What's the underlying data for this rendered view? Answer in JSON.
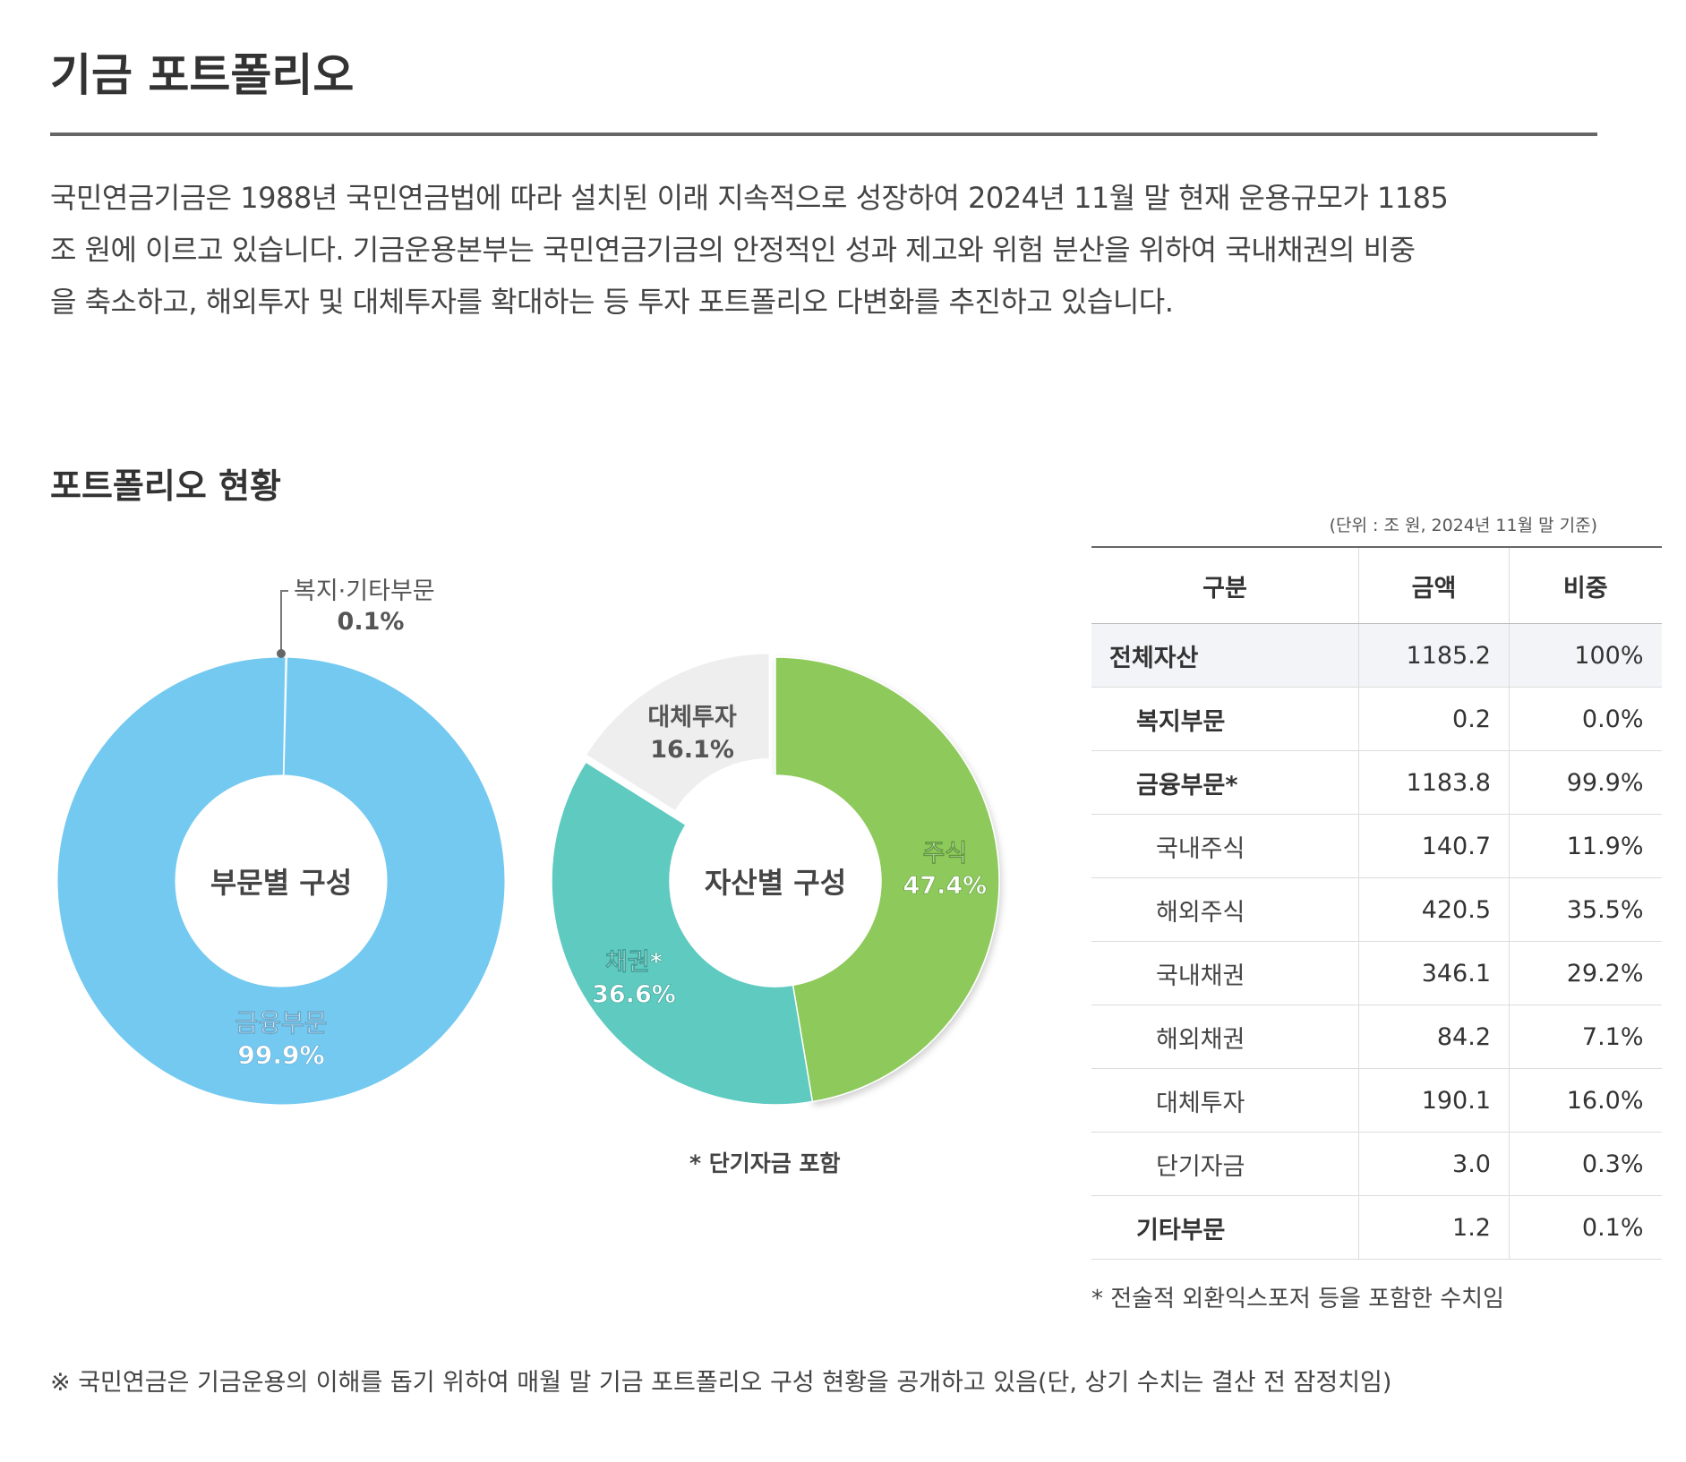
{
  "header": {
    "title": "기금 포트폴리오"
  },
  "intro": {
    "line1": "국민연금기금은 1988년 국민연금법에 따라 설치된 이래 지속적으로 성장하여 2024년 11월 말 현재 운용규모가 1185",
    "line2": "조 원에 이르고 있습니다. 기금운용본부는 국민연금기금의 안정적인 성과 제고와 위험 분산을 위하여 국내채권의 비중",
    "line3": "을 축소하고, 해외투자 및 대체투자를 확대하는 등 투자 포트폴리오 다변화를 추진하고 있습니다."
  },
  "section": {
    "title": "포트폴리오 현황",
    "unit_note": "(단위 : 조 원, 2024년 11월 말 기준)"
  },
  "chart_data": [
    {
      "type": "pie",
      "center_label": "부문별 구성",
      "slices": [
        {
          "label": "복지·기타부문",
          "value_label": "0.1%",
          "value": 0.1,
          "color": "#e6e6e6"
        },
        {
          "label": "금융부문",
          "value_label": "99.9%",
          "value": 99.9,
          "color": "#74c9f0"
        }
      ]
    },
    {
      "type": "pie",
      "center_label": "자산별 구성",
      "slices": [
        {
          "label": "주식",
          "value_label": "47.4%",
          "value": 47.4,
          "color": "#8ec95c"
        },
        {
          "label": "채권*",
          "value_label": "36.6%",
          "value": 36.6,
          "color": "#5ecac0"
        },
        {
          "label": "대체투자",
          "value_label": "16.1%",
          "value": 16.1,
          "color": "#eeeeee"
        }
      ],
      "footnote": "* 단기자금 포함"
    }
  ],
  "table": {
    "headers": [
      "구분",
      "금액",
      "비중"
    ],
    "rows": [
      {
        "label": "전체자산",
        "amount": "1185.2",
        "share": "100%",
        "level": "total"
      },
      {
        "label": "복지부문",
        "amount": "0.2",
        "share": "0.0%",
        "level": "main"
      },
      {
        "label": "금융부문*",
        "amount": "1183.8",
        "share": "99.9%",
        "level": "main"
      },
      {
        "label": "국내주식",
        "amount": "140.7",
        "share": "11.9%",
        "level": "sub"
      },
      {
        "label": "해외주식",
        "amount": "420.5",
        "share": "35.5%",
        "level": "sub"
      },
      {
        "label": "국내채권",
        "amount": "346.1",
        "share": "29.2%",
        "level": "sub"
      },
      {
        "label": "해외채권",
        "amount": "84.2",
        "share": "7.1%",
        "level": "sub"
      },
      {
        "label": "대체투자",
        "amount": "190.1",
        "share": "16.0%",
        "level": "sub"
      },
      {
        "label": "단기자금",
        "amount": "3.0",
        "share": "0.3%",
        "level": "sub"
      },
      {
        "label": "기타부문",
        "amount": "1.2",
        "share": "0.1%",
        "level": "main"
      }
    ],
    "note": "* 전술적 외환익스포저 등을 포함한 수치임"
  },
  "bottom_note": "※  국민연금은 기금운용의 이해를 돕기 위하여 매월 말 기금 포트폴리오 구성 현황을 공개하고 있음(단, 상기 수치는 결산 전 잠정치임)"
}
